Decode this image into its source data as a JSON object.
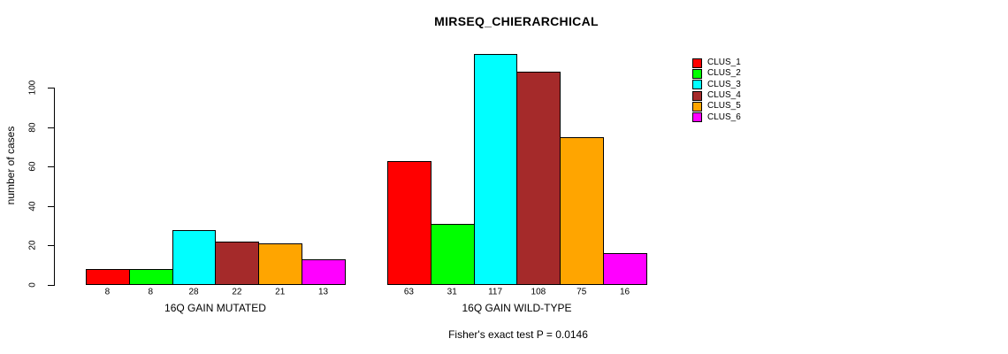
{
  "figure": {
    "title": "MIRSEQ_CHIERARCHICAL",
    "ylabel": "number of cases",
    "annotation": "Fisher's exact test P = 0.0146"
  },
  "chart_data": {
    "type": "bar",
    "title": "MIRSEQ_CHIERARCHICAL",
    "xlabel": "",
    "ylabel": "number of cases",
    "yticks": [
      0,
      20,
      40,
      60,
      80,
      100
    ],
    "ylim": [
      0,
      117
    ],
    "grid": false,
    "legend_position": "top-right",
    "categories": [
      "16Q GAIN MUTATED",
      "16Q GAIN WILD-TYPE"
    ],
    "series": [
      {
        "name": "CLUS_1",
        "color": "#FF0000",
        "values": [
          8,
          63
        ]
      },
      {
        "name": "CLUS_2",
        "color": "#00FF00",
        "values": [
          8,
          31
        ]
      },
      {
        "name": "CLUS_3",
        "color": "#00FFFF",
        "values": [
          28,
          117
        ]
      },
      {
        "name": "CLUS_4",
        "color": "#A52A2A",
        "values": [
          22,
          108
        ]
      },
      {
        "name": "CLUS_5",
        "color": "#FFA500",
        "values": [
          21,
          75
        ]
      },
      {
        "name": "CLUS_6",
        "color": "#FF00FF",
        "values": [
          13,
          16
        ]
      }
    ],
    "bar_value_labels_shown": true,
    "annotation": "Fisher's exact test P = 0.0146"
  }
}
